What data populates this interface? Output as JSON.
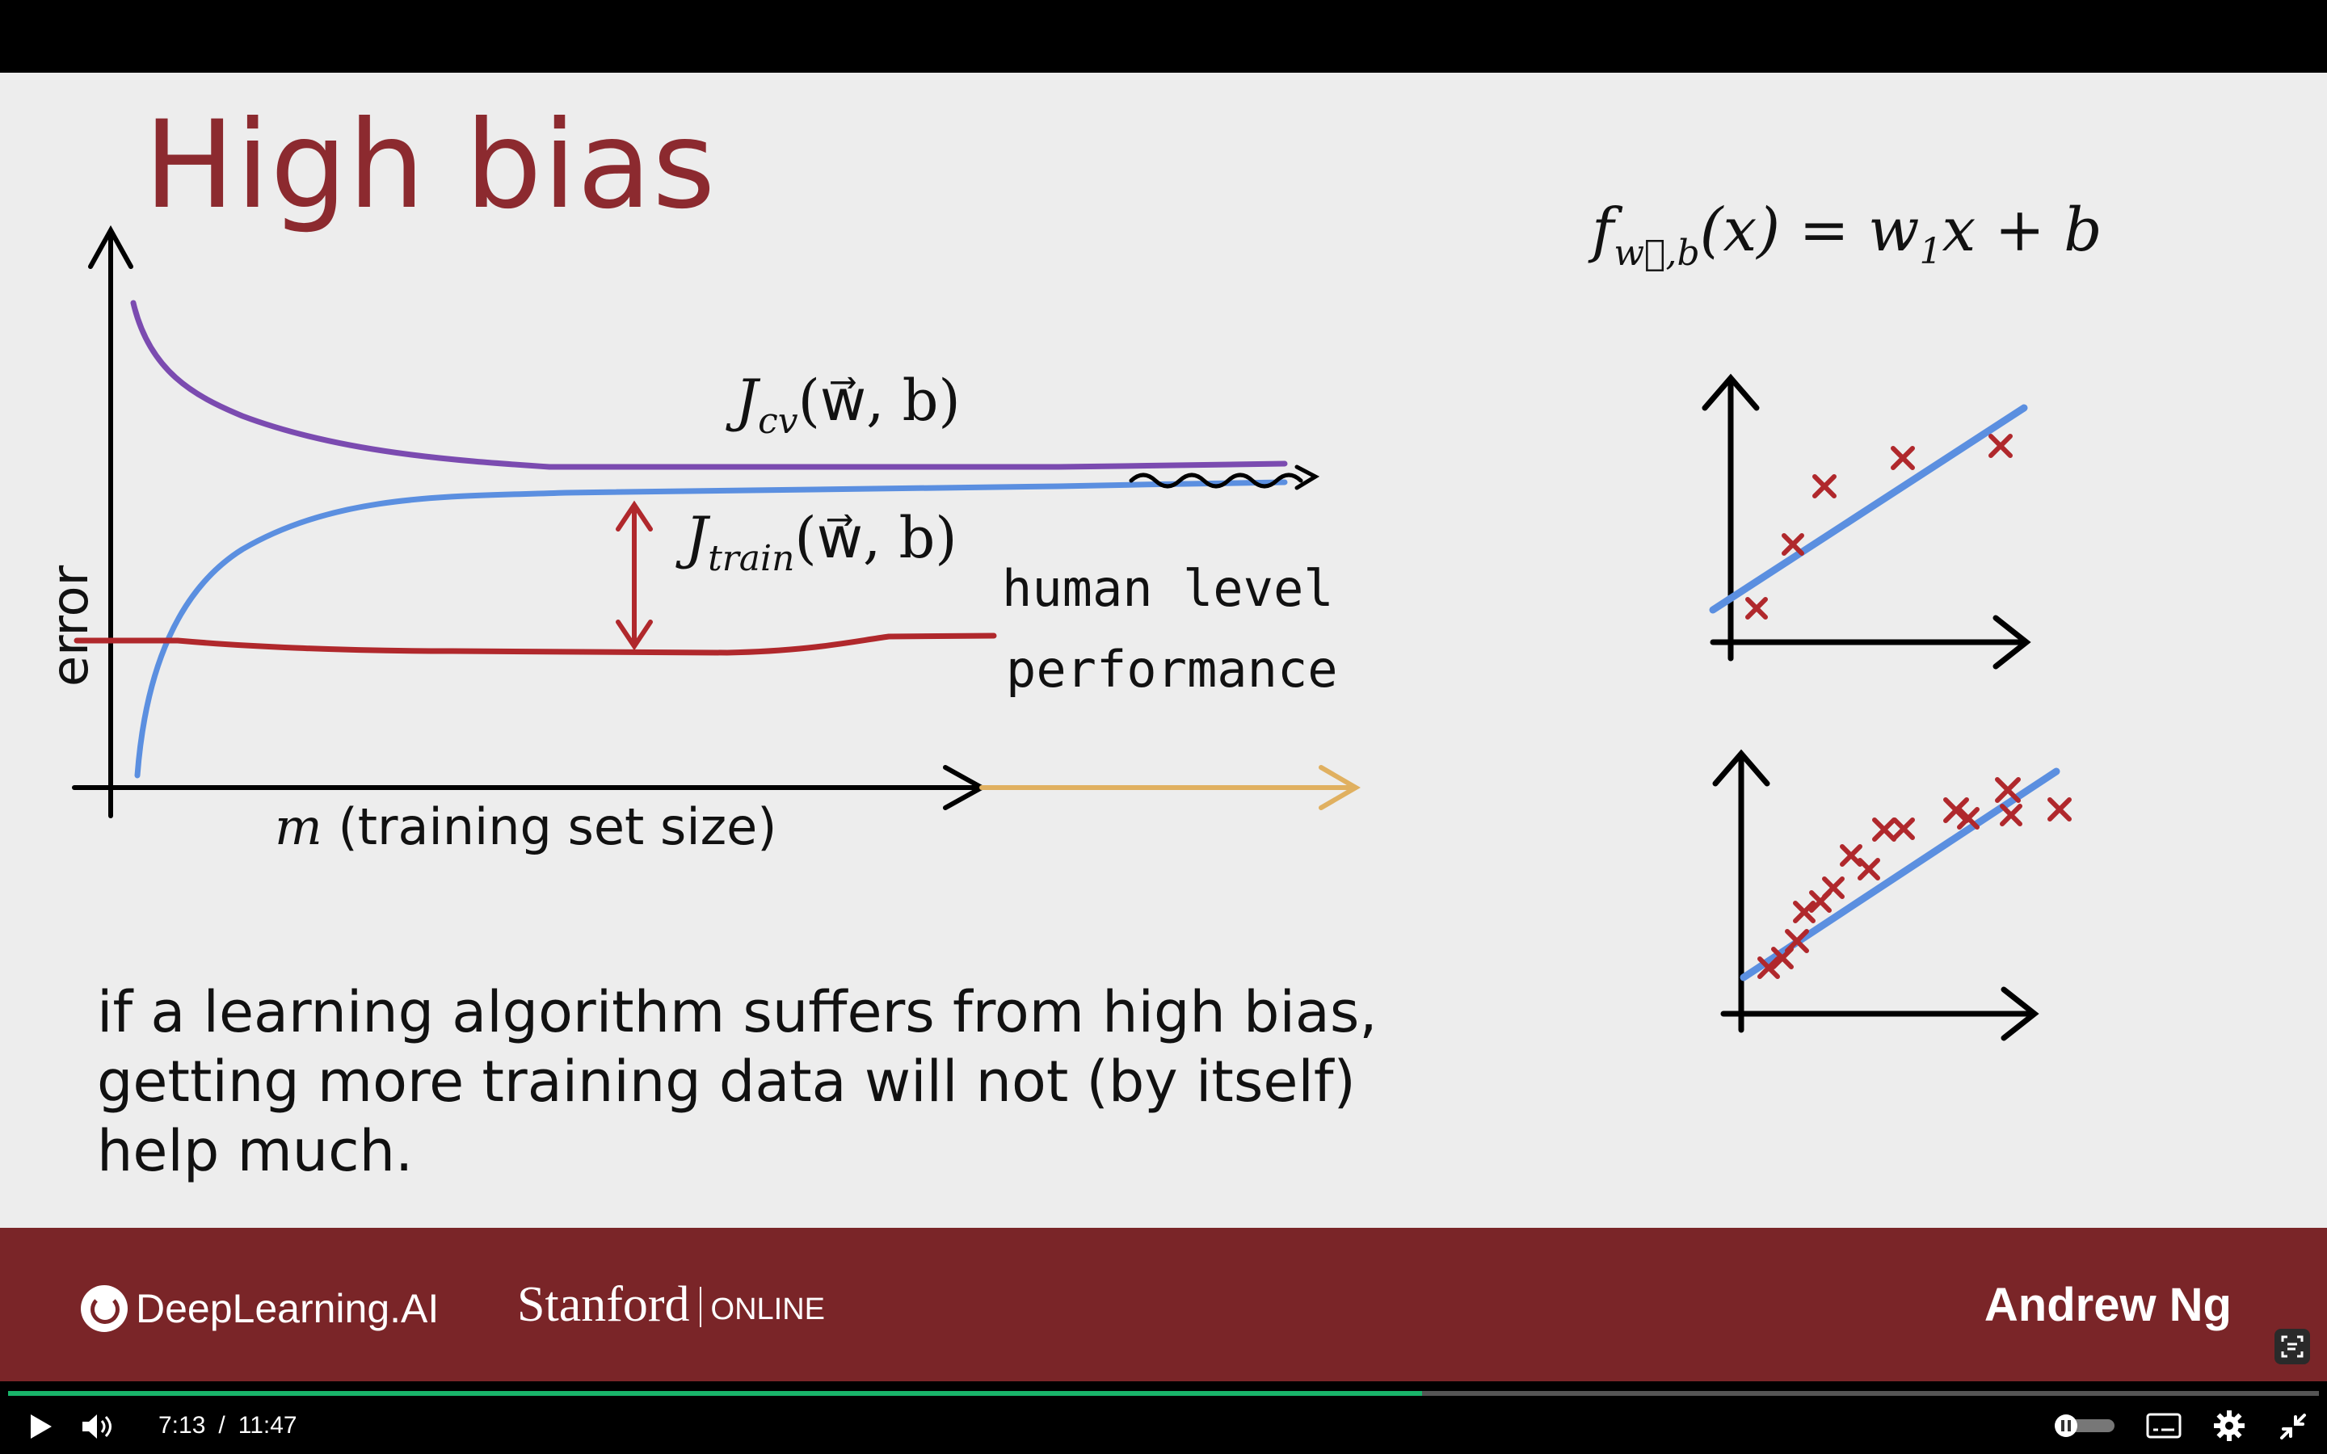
{
  "slide": {
    "title": "High bias",
    "curve_labels": {
      "cv": "J",
      "cv_sub": "cv",
      "train": "J",
      "train_sub": "train",
      "args": "(w⃗, b)",
      "human_line1": "human level",
      "human_line2": "performance",
      "y_axis": "error",
      "x_axis_m": "m",
      "x_axis_rest": " (training set size)"
    },
    "formula": {
      "f": "f",
      "sub": "w⃗,b",
      "body": "(x) = w",
      "w_sub": "1",
      "rest": "x + b"
    },
    "caption": [
      "if a learning algorithm suffers from high bias,",
      "getting more training data will not (by itself)",
      "help much."
    ]
  },
  "footer": {
    "brand": "DeepLearning.AI",
    "university": "Stanford",
    "online": "ONLINE",
    "presenter": "Andrew Ng"
  },
  "player": {
    "current_time": "7:13",
    "separator": "/",
    "duration": "11:47",
    "progress_fraction": 0.612
  },
  "colors": {
    "title": "#8c2a2f",
    "cv_curve": "#7b4bb0",
    "train_curve": "#5b8fe0",
    "human_line": "#b0282c",
    "extend_arrow": "#e0b060",
    "footer_bg": "#7a2528",
    "progress": "#19b46a"
  }
}
